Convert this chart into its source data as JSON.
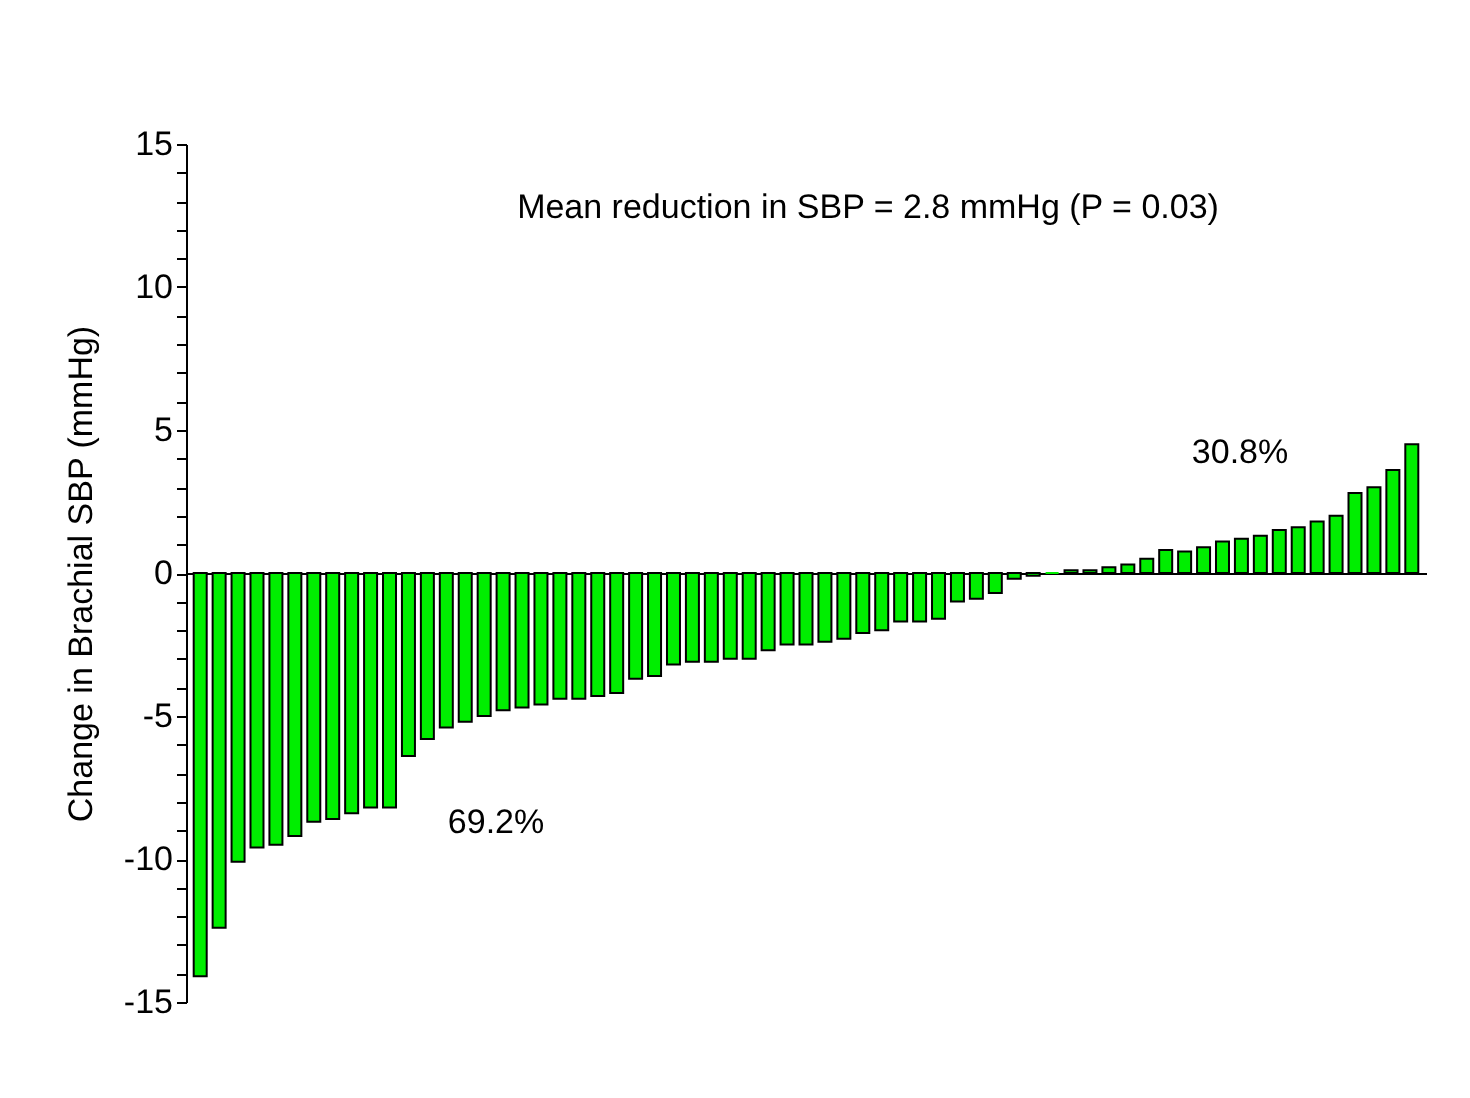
{
  "chart_data": {
    "type": "bar",
    "ylabel": "Change in Brachial SBP (mmHg)",
    "annotations": [
      "Mean reduction in SBP = 2.8 mmHg (P = 0.03)",
      "69.2%",
      "30.8%"
    ],
    "categories": [
      null,
      null,
      null,
      null,
      null,
      null,
      null,
      null,
      null,
      null,
      null,
      null,
      null,
      null,
      null,
      null,
      null,
      null,
      null,
      null,
      null,
      null,
      null,
      null,
      null,
      null,
      null,
      null,
      null,
      null,
      null,
      null,
      null,
      null,
      null,
      null,
      null,
      null,
      null,
      null,
      null,
      null,
      null,
      null,
      null,
      null,
      null,
      null,
      null,
      null,
      null,
      null,
      null,
      null,
      null,
      null,
      null,
      null,
      null,
      null,
      null,
      null,
      null,
      null,
      null
    ],
    "values": [
      -14.1,
      -12.4,
      -10.1,
      -9.6,
      -9.5,
      -9.2,
      -8.7,
      -8.6,
      -8.4,
      -8.2,
      -8.2,
      -6.4,
      -5.8,
      -5.4,
      -5.2,
      -5.0,
      -4.8,
      -4.7,
      -4.6,
      -4.4,
      -4.4,
      -4.3,
      -4.2,
      -3.7,
      -3.6,
      -3.2,
      -3.1,
      -3.1,
      -3.0,
      -3.0,
      -2.7,
      -2.5,
      -2.5,
      -2.4,
      -2.3,
      -2.1,
      -2.0,
      -1.7,
      -1.7,
      -1.6,
      -1.0,
      -0.9,
      -0.7,
      -0.2,
      -0.1,
      0,
      0.1,
      0.1,
      0.2,
      0.3,
      0.5,
      0.8,
      0.75,
      0.9,
      1.1,
      1.2,
      1.3,
      1.5,
      1.6,
      1.8,
      2.0,
      2.8,
      3.0,
      3.6,
      4.5
    ],
    "color": "#00ee00",
    "ylim": [
      -15,
      15
    ],
    "yticks": [
      -15,
      {
        "value": -14,
        "label": null
      },
      {
        "value": -13,
        "label": null
      },
      {
        "value": -12,
        "label": null
      },
      {
        "value": -11,
        "label": null
      },
      -10,
      {
        "value": -9,
        "label": null
      },
      {
        "value": -8,
        "label": null
      },
      {
        "value": -7,
        "label": null
      },
      {
        "value": -6,
        "label": null
      },
      -5,
      {
        "value": -4,
        "label": null
      },
      {
        "value": -3,
        "label": null
      },
      {
        "value": -2,
        "label": null
      },
      {
        "value": -1,
        "label": null
      },
      0,
      {
        "value": 1,
        "label": null
      },
      {
        "value": 2,
        "label": null
      },
      {
        "value": 3,
        "label": null
      },
      {
        "value": 4,
        "label": null
      },
      5,
      {
        "value": 6,
        "label": null
      },
      {
        "value": 7,
        "label": null
      },
      {
        "value": 8,
        "label": null
      },
      {
        "value": 9,
        "label": null
      },
      10,
      {
        "value": 11,
        "label": null
      },
      {
        "value": 12,
        "label": null
      },
      {
        "value": 13,
        "label": null
      },
      {
        "value": 14,
        "label": null
      },
      15
    ]
  }
}
